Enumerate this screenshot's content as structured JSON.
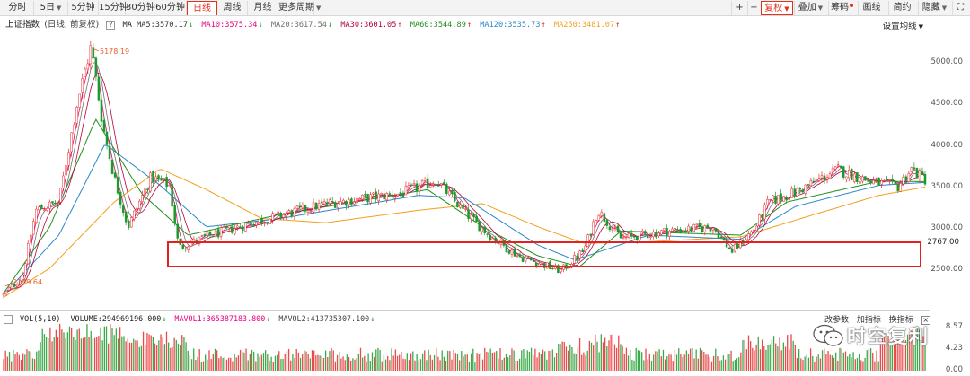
{
  "toolbar": {
    "tabs": [
      {
        "label": "分时"
      },
      {
        "label": "5日",
        "has_menu": true
      },
      {
        "label": "5分钟"
      },
      {
        "label": "15分钟"
      },
      {
        "label": "30分钟"
      },
      {
        "label": "60分钟"
      },
      {
        "label": "日线",
        "active": true
      },
      {
        "label": "周线"
      },
      {
        "label": "月线"
      },
      {
        "label": "更多周期",
        "has_menu": true
      }
    ],
    "zoom_in": "+",
    "zoom_out": "−",
    "fuquan": "复权",
    "overlay": "叠加",
    "chips": "筹码",
    "draw": "画线",
    "simple": "简约",
    "hide": "隐藏",
    "fullscreen": "⛶"
  },
  "info": {
    "index_name": "上证指数",
    "mode": "(日线, 前复权)",
    "help": "?",
    "ma_label": "MA",
    "ma5": "MA5:3570.17",
    "ma10": "MA10:3575.34",
    "ma20": "MA20:3617.54",
    "ma30": "MA30:3601.05",
    "ma60": "MA60:3544.89",
    "ma120": "MA120:3535.73",
    "ma250": "MA250:3481.07",
    "settings": "设置均线"
  },
  "colors": {
    "ma5": "#333333",
    "ma10": "#e6007e",
    "ma20": "#6f6f6f",
    "ma30": "#b5003a",
    "ma60": "#1d8f1d",
    "ma120": "#2a88c9",
    "ma250": "#f0a01e",
    "up": "#e8292a",
    "down": "#1a9a2a",
    "highlight_box": "#e5201e"
  },
  "price_axis": {
    "labels": [
      "5000.00",
      "4500.00",
      "4000.00",
      "3500.00",
      "3000.00",
      "2500.00"
    ],
    "ref_value": "2767.00"
  },
  "annotations": {
    "high": "5178.19",
    "low": "2179.64"
  },
  "volume": {
    "header": "VOL(5,10)",
    "volume": "VOLUME:294969196.000",
    "mavol1": "MAVOL1:365387183.800",
    "mavol2": "MAVOL2:413735307.100",
    "axis": [
      "8.57",
      "4.23",
      "0.00"
    ],
    "buttons": {
      "params": "改参数",
      "add": "加指标",
      "swap": "换指标",
      "close": "×"
    }
  },
  "watermark": {
    "text": "时空复利"
  },
  "chart_data": {
    "type": "candlestick",
    "title": "",
    "ylim": [
      2100,
      5400
    ],
    "y_ticks": [
      2500,
      3000,
      3500,
      4000,
      4500,
      5000
    ],
    "reference_line": 2767,
    "key_points": [
      {
        "x": 0.0,
        "y": 2180
      },
      {
        "x": 0.02,
        "y": 2400
      },
      {
        "x": 0.035,
        "y": 3200
      },
      {
        "x": 0.06,
        "y": 3300
      },
      {
        "x": 0.08,
        "y": 4500
      },
      {
        "x": 0.095,
        "y": 5178
      },
      {
        "x": 0.108,
        "y": 4200
      },
      {
        "x": 0.12,
        "y": 3600
      },
      {
        "x": 0.135,
        "y": 3000
      },
      {
        "x": 0.16,
        "y": 3600
      },
      {
        "x": 0.18,
        "y": 3500
      },
      {
        "x": 0.19,
        "y": 2750
      },
      {
        "x": 0.22,
        "y": 2880
      },
      {
        "x": 0.27,
        "y": 3050
      },
      {
        "x": 0.35,
        "y": 3280
      },
      {
        "x": 0.43,
        "y": 3400
      },
      {
        "x": 0.47,
        "y": 3560
      },
      {
        "x": 0.5,
        "y": 3180
      },
      {
        "x": 0.53,
        "y": 2870
      },
      {
        "x": 0.56,
        "y": 2640
      },
      {
        "x": 0.605,
        "y": 2470
      },
      {
        "x": 0.63,
        "y": 2720
      },
      {
        "x": 0.645,
        "y": 3200
      },
      {
        "x": 0.67,
        "y": 2860
      },
      {
        "x": 0.72,
        "y": 2950
      },
      {
        "x": 0.77,
        "y": 3000
      },
      {
        "x": 0.79,
        "y": 2700
      },
      {
        "x": 0.815,
        "y": 2980
      },
      {
        "x": 0.83,
        "y": 3300
      },
      {
        "x": 0.86,
        "y": 3420
      },
      {
        "x": 0.905,
        "y": 3690
      },
      {
        "x": 0.94,
        "y": 3550
      },
      {
        "x": 0.97,
        "y": 3480
      },
      {
        "x": 0.985,
        "y": 3700
      },
      {
        "x": 1.0,
        "y": 3570
      }
    ],
    "moving_averages": [
      {
        "name": "MA250",
        "points": [
          {
            "x": 0.0,
            "y": 2150
          },
          {
            "x": 0.05,
            "y": 2500
          },
          {
            "x": 0.12,
            "y": 3300
          },
          {
            "x": 0.17,
            "y": 3700
          },
          {
            "x": 0.22,
            "y": 3450
          },
          {
            "x": 0.28,
            "y": 3100
          },
          {
            "x": 0.35,
            "y": 3050
          },
          {
            "x": 0.45,
            "y": 3200
          },
          {
            "x": 0.52,
            "y": 3280
          },
          {
            "x": 0.58,
            "y": 3000
          },
          {
            "x": 0.63,
            "y": 2800
          },
          {
            "x": 0.7,
            "y": 2820
          },
          {
            "x": 0.8,
            "y": 2880
          },
          {
            "x": 0.88,
            "y": 3150
          },
          {
            "x": 0.95,
            "y": 3380
          },
          {
            "x": 1.0,
            "y": 3481
          }
        ]
      },
      {
        "name": "MA120",
        "points": [
          {
            "x": 0.0,
            "y": 2180
          },
          {
            "x": 0.06,
            "y": 2900
          },
          {
            "x": 0.11,
            "y": 4000
          },
          {
            "x": 0.17,
            "y": 3500
          },
          {
            "x": 0.22,
            "y": 3000
          },
          {
            "x": 0.3,
            "y": 3100
          },
          {
            "x": 0.45,
            "y": 3380
          },
          {
            "x": 0.5,
            "y": 3350
          },
          {
            "x": 0.58,
            "y": 2780
          },
          {
            "x": 0.62,
            "y": 2600
          },
          {
            "x": 0.7,
            "y": 2900
          },
          {
            "x": 0.8,
            "y": 2850
          },
          {
            "x": 0.86,
            "y": 3250
          },
          {
            "x": 0.95,
            "y": 3500
          },
          {
            "x": 1.0,
            "y": 3536
          }
        ]
      },
      {
        "name": "MA60",
        "points": [
          {
            "x": 0.0,
            "y": 2200
          },
          {
            "x": 0.05,
            "y": 3000
          },
          {
            "x": 0.1,
            "y": 4300
          },
          {
            "x": 0.15,
            "y": 3400
          },
          {
            "x": 0.2,
            "y": 2900
          },
          {
            "x": 0.3,
            "y": 3150
          },
          {
            "x": 0.46,
            "y": 3450
          },
          {
            "x": 0.52,
            "y": 3000
          },
          {
            "x": 0.58,
            "y": 2650
          },
          {
            "x": 0.625,
            "y": 2520
          },
          {
            "x": 0.67,
            "y": 2950
          },
          {
            "x": 0.8,
            "y": 2900
          },
          {
            "x": 0.85,
            "y": 3300
          },
          {
            "x": 0.95,
            "y": 3550
          },
          {
            "x": 1.0,
            "y": 3545
          }
        ]
      }
    ],
    "volume_ylim": [
      0,
      8.57
    ],
    "volume_ticks": [
      0.0,
      4.23,
      8.57
    ]
  }
}
